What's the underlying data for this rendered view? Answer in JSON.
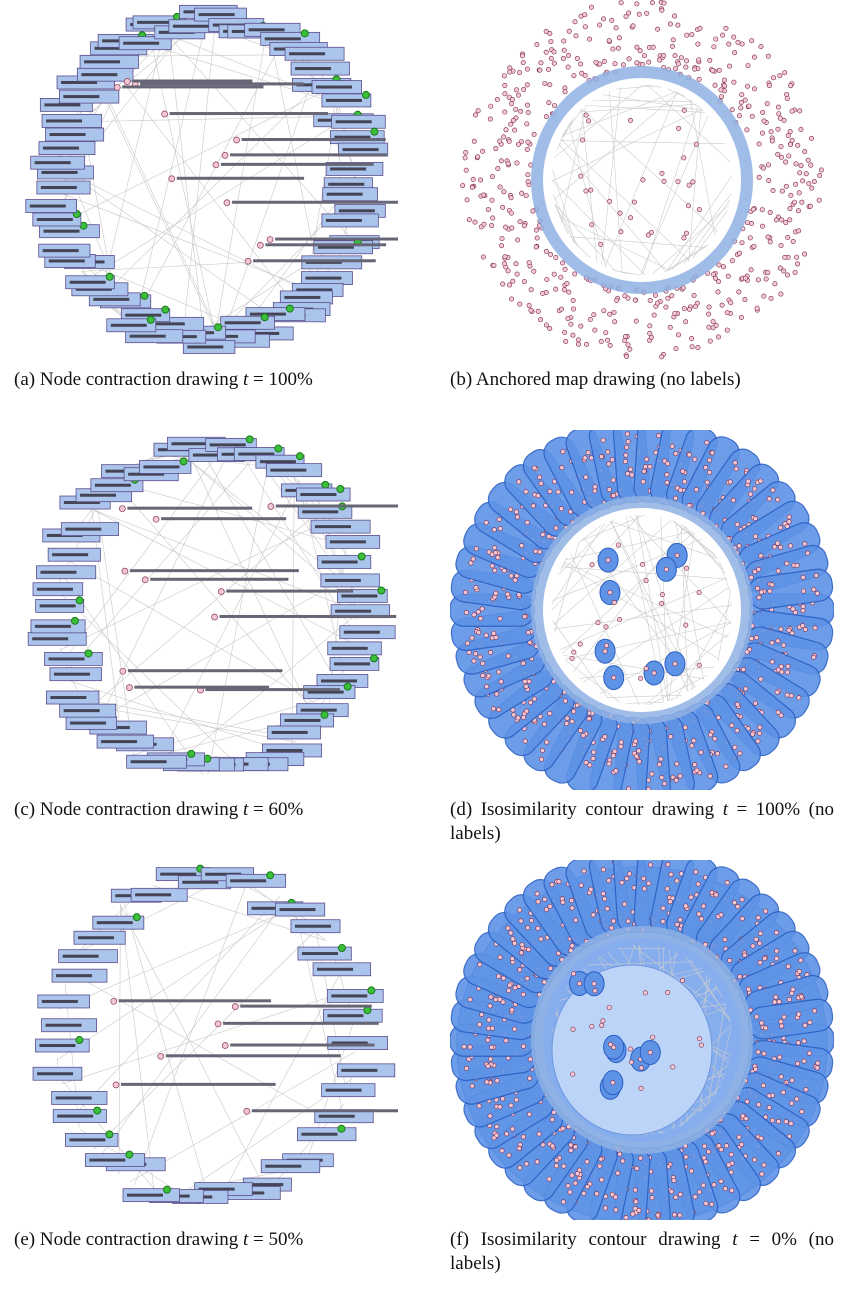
{
  "figure": {
    "panels": [
      {
        "label": "(a)",
        "text": "Node contraction drawing ",
        "var": "t",
        "rest": " = 100%"
      },
      {
        "label": "(b)",
        "text": "Anchored map drawing (no labels)"
      },
      {
        "label": "(c)",
        "text": "Node contraction drawing ",
        "var": "t",
        "rest": " = 60%"
      },
      {
        "label": "(d)",
        "text": "Isosimilarity contour drawing ",
        "var": "t",
        "rest": " = 100% (no labels)"
      },
      {
        "label": "(e)",
        "text": "Node contraction drawing ",
        "var": "t",
        "rest": " = 50%"
      },
      {
        "label": "(f)",
        "text": "Isosimilarity contour drawing ",
        "var": "t",
        "rest": " = 0% (no labels)"
      }
    ]
  }
}
